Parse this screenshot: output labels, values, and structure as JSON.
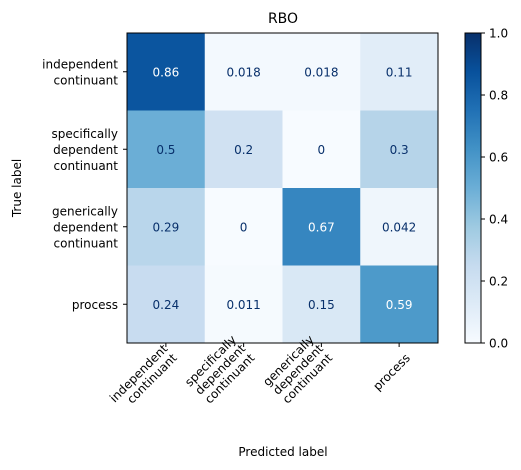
{
  "chart_data": {
    "type": "heatmap",
    "title": "RBO",
    "xlabel": "Predicted label",
    "ylabel": "True label",
    "row_labels": [
      [
        "independent",
        "continuant"
      ],
      [
        "specifically",
        "dependent",
        "continuant"
      ],
      [
        "generically",
        "dependent",
        "continuant"
      ],
      [
        "process"
      ]
    ],
    "col_labels": [
      [
        "independent",
        "continuant"
      ],
      [
        "specifically",
        "dependent",
        "continuant"
      ],
      [
        "generically",
        "dependent",
        "continuant"
      ],
      [
        "process"
      ]
    ],
    "values": [
      [
        0.86,
        0.018,
        0.018,
        0.11
      ],
      [
        0.5,
        0.2,
        0,
        0.3
      ],
      [
        0.29,
        0,
        0.67,
        0.042
      ],
      [
        0.24,
        0.011,
        0.15,
        0.59
      ]
    ],
    "value_labels": [
      [
        "0.86",
        "0.018",
        "0.018",
        "0.11"
      ],
      [
        "0.5",
        "0.2",
        "0",
        "0.3"
      ],
      [
        "0.29",
        "0",
        "0.67",
        "0.042"
      ],
      [
        "0.24",
        "0.011",
        "0.15",
        "0.59"
      ]
    ],
    "colorbar": {
      "range": [
        0.0,
        1.0
      ],
      "ticks": [
        0.0,
        0.2,
        0.4,
        0.6,
        0.8,
        1.0
      ],
      "tick_labels": [
        "0.0",
        "0.2",
        "0.4",
        "0.6",
        "0.8",
        "1.0"
      ],
      "colormap": "Blues"
    },
    "colors": {
      "light_text": "#ffffff",
      "dark_text": "#08306b",
      "low": "#f7fbff",
      "high": "#08306b"
    }
  }
}
